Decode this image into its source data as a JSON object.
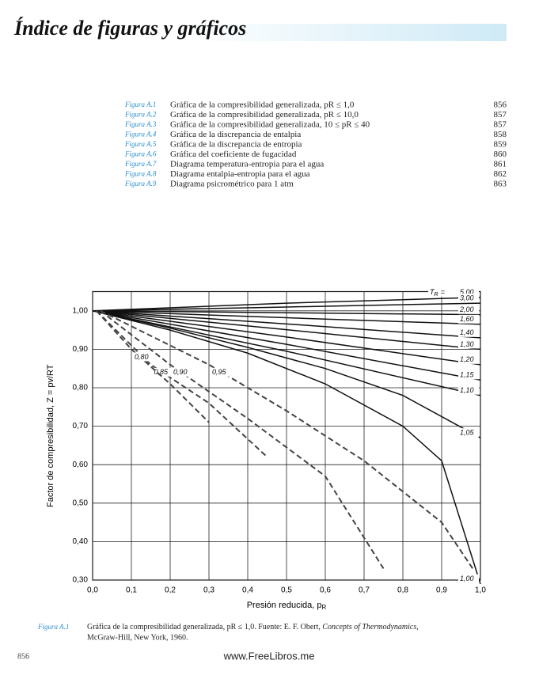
{
  "header": {
    "title": "Índice de figuras y gráficos"
  },
  "figure_list": [
    {
      "label": "Figura A.1",
      "text": "Gráfica de la compresibilidad generalizada, pR ≤ 1,0",
      "page": "856"
    },
    {
      "label": "Figura A.2",
      "text": "Gráfica de la compresibilidad generalizada, pR ≤ 10,0",
      "page": "857"
    },
    {
      "label": "Figura A.3",
      "text": "Gráfica de la compresibilidad generalizada, 10 ≤ pR ≤ 40",
      "page": "857"
    },
    {
      "label": "Figura A.4",
      "text": "Gráfica de la discrepancia de entalpia",
      "page": "858"
    },
    {
      "label": "Figura A.5",
      "text": "Gráfica de la discrepancia de entropia",
      "page": "859"
    },
    {
      "label": "Figura A.6",
      "text": "Gráfica del coeficiente de fugacidad",
      "page": "860"
    },
    {
      "label": "Figura A.7",
      "text": "Diagrama temperatura-entropia para el agua",
      "page": "861"
    },
    {
      "label": "Figura A.8",
      "text": "Diagrama entalpia-entropia para el agua",
      "page": "862"
    },
    {
      "label": "Figura A.9",
      "text": "Diagrama psicrométrico para 1 atm",
      "page": "863"
    }
  ],
  "chart_data": {
    "type": "line",
    "xlabel": "Presión reducida, p",
    "xlabel_sub": "R",
    "ylabel": "Factor de compresibilidad, Z = pv/RT",
    "tr_symbol": "T",
    "tr_sub": "R",
    "tr_eq": "=",
    "xlim": [
      0,
      1
    ],
    "ylim": [
      0.3,
      1.05
    ],
    "xticks": [
      {
        "value": 0,
        "label": "0,0"
      },
      {
        "value": 0.1,
        "label": "0,1"
      },
      {
        "value": 0.2,
        "label": "0,2"
      },
      {
        "value": 0.3,
        "label": "0,3"
      },
      {
        "value": 0.4,
        "label": "0,4"
      },
      {
        "value": 0.5,
        "label": "0,5"
      },
      {
        "value": 0.6,
        "label": "0,6"
      },
      {
        "value": 0.7,
        "label": "0,7"
      },
      {
        "value": 0.8,
        "label": "0,8"
      },
      {
        "value": 0.9,
        "label": "0,9"
      },
      {
        "value": 1,
        "label": "1,0"
      }
    ],
    "yticks": [
      {
        "value": 0.3,
        "label": "0,30"
      },
      {
        "value": 0.4,
        "label": "0,40"
      },
      {
        "value": 0.5,
        "label": "0,50"
      },
      {
        "value": 0.6,
        "label": "0,60"
      },
      {
        "value": 0.7,
        "label": "0,70"
      },
      {
        "value": 0.8,
        "label": "0,80"
      },
      {
        "value": 0.9,
        "label": "0,90"
      },
      {
        "value": 1,
        "label": "1,00"
      }
    ],
    "grid": true,
    "series": [
      {
        "name": "5,00",
        "color": "#111",
        "x": [
          0,
          0.5,
          1
        ],
        "values": [
          1,
          1.02,
          1.035
        ]
      },
      {
        "name": "3,00",
        "color": "#111",
        "x": [
          0,
          0.5,
          1
        ],
        "values": [
          1,
          1.01,
          1.02
        ]
      },
      {
        "name": "2,00",
        "color": "#111",
        "x": [
          0,
          0.5,
          1
        ],
        "values": [
          1,
          0.995,
          0.99
        ]
      },
      {
        "name": "1,60",
        "color": "#111",
        "x": [
          0,
          0.5,
          1
        ],
        "values": [
          1,
          0.982,
          0.965
        ]
      },
      {
        "name": "1,40",
        "color": "#111",
        "x": [
          0,
          0.5,
          1
        ],
        "values": [
          1,
          0.966,
          0.93
        ]
      },
      {
        "name": "1,30",
        "color": "#111",
        "x": [
          0,
          0.5,
          1
        ],
        "values": [
          1,
          0.951,
          0.9
        ]
      },
      {
        "name": "1,20",
        "color": "#111",
        "x": [
          0,
          0.5,
          1
        ],
        "values": [
          1,
          0.932,
          0.86
        ]
      },
      {
        "name": "1,15",
        "color": "#111",
        "x": [
          0,
          0.5,
          1
        ],
        "values": [
          1,
          0.913,
          0.82
        ]
      },
      {
        "name": "1,10",
        "color": "#111",
        "x": [
          0,
          0.5,
          1
        ],
        "values": [
          1,
          0.895,
          0.78
        ]
      },
      {
        "name": "1,05",
        "color": "#111",
        "x": [
          0,
          0.2,
          0.4,
          0.6,
          0.8,
          1
        ],
        "values": [
          1,
          0.955,
          0.905,
          0.85,
          0.78,
          0.67
        ]
      },
      {
        "name": "1,00",
        "color": "#111",
        "x": [
          0,
          0.2,
          0.4,
          0.6,
          0.8,
          0.9,
          1
        ],
        "values": [
          1,
          0.95,
          0.89,
          0.81,
          0.7,
          0.61,
          0.29
        ]
      },
      {
        "name": "0,95",
        "color": "#444",
        "dash": true,
        "x": [
          0.02,
          0.3,
          0.5,
          0.7,
          0.9,
          0.98
        ],
        "values": [
          1,
          0.86,
          0.74,
          0.61,
          0.45,
          0.33
        ]
      },
      {
        "name": "0,90",
        "color": "#444",
        "dash": true,
        "x": [
          0.02,
          0.2,
          0.4,
          0.6,
          0.75
        ],
        "values": [
          1,
          0.86,
          0.72,
          0.57,
          0.33
        ]
      },
      {
        "name": "0,85",
        "color": "#444",
        "dash": true,
        "x": [
          0.01,
          0.15,
          0.3,
          0.45
        ],
        "values": [
          1,
          0.86,
          0.76,
          0.62
        ]
      },
      {
        "name": "0,80",
        "color": "#444",
        "dash": true,
        "x": [
          0.01,
          0.1,
          0.2,
          0.3
        ],
        "values": [
          1,
          0.9,
          0.81,
          0.71
        ]
      }
    ]
  },
  "caption": {
    "label": "Figura A.1",
    "text": "Gráfica de la compresibilidad generalizada, pR ≤ 1,0. Fuente: E. F. Obert, ",
    "source_title": "Concepts of Thermodynamics,",
    "rest": "McGraw-Hill, New York, 1960."
  },
  "footer": {
    "page": "856",
    "site": "www.FreeLibros.me"
  }
}
